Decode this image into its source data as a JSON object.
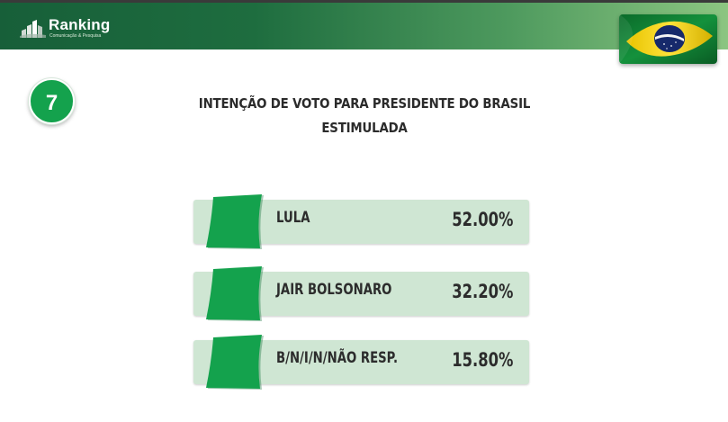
{
  "header": {
    "logo_text": "Ranking",
    "logo_sub": "Comunicação & Pesquisa"
  },
  "badge": "7",
  "chart_data": {
    "type": "bar",
    "title": "INTENÇÃO DE VOTO PARA PRESIDENTE DO BRASIL",
    "subtitle": "ESTIMULADA",
    "categories": [
      "LULA",
      "JAIR BOLSONARO",
      "B/N/I/N/NÃO RESP."
    ],
    "values": [
      52.0,
      32.2,
      15.8
    ],
    "value_labels": [
      "52.00%",
      "32.20%",
      "15.80%"
    ],
    "colors": {
      "accent": "#14a24d",
      "row_fill": "#cfe6d3",
      "text": "#2c2c2c"
    }
  }
}
